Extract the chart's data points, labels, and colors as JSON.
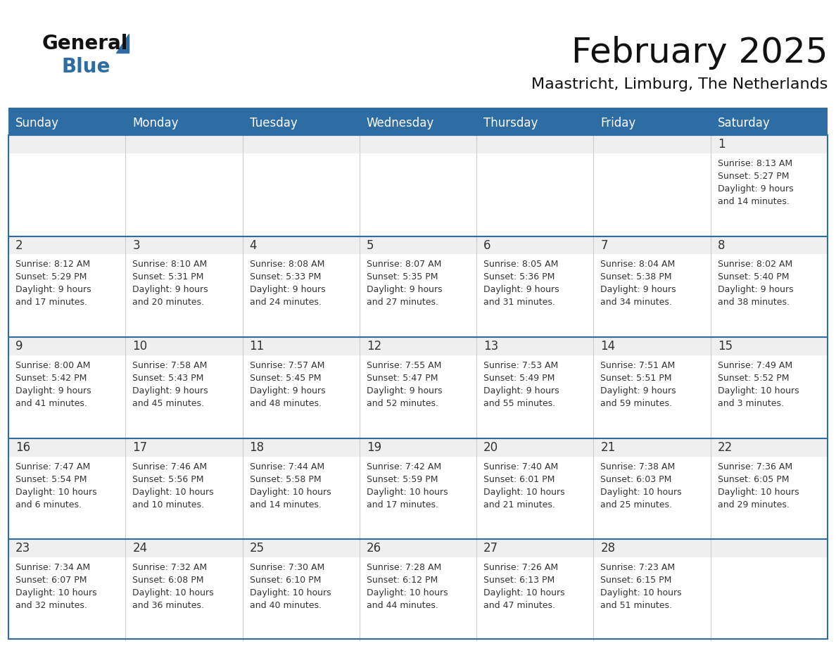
{
  "title": "February 2025",
  "subtitle": "Maastricht, Limburg, The Netherlands",
  "header_color": "#2E6DA4",
  "header_text_color": "#FFFFFF",
  "row_separator_color": "#2E6DA4",
  "col_separator_color": "#CCCCCC",
  "cell_bg_light": "#EFEFEF",
  "cell_bg_white": "#FFFFFF",
  "day_num_color": "#333333",
  "info_text_color": "#333333",
  "day_headers": [
    "Sunday",
    "Monday",
    "Tuesday",
    "Wednesday",
    "Thursday",
    "Friday",
    "Saturday"
  ],
  "logo_text_general": "General",
  "logo_text_blue": "Blue",
  "logo_color": "#2E6DA4",
  "title_fontsize": 36,
  "subtitle_fontsize": 16,
  "header_fontsize": 12,
  "day_num_fontsize": 12,
  "cell_fontsize": 9,
  "weeks": [
    [
      {
        "day": null,
        "info": null
      },
      {
        "day": null,
        "info": null
      },
      {
        "day": null,
        "info": null
      },
      {
        "day": null,
        "info": null
      },
      {
        "day": null,
        "info": null
      },
      {
        "day": null,
        "info": null
      },
      {
        "day": 1,
        "info": "Sunrise: 8:13 AM\nSunset: 5:27 PM\nDaylight: 9 hours\nand 14 minutes."
      }
    ],
    [
      {
        "day": 2,
        "info": "Sunrise: 8:12 AM\nSunset: 5:29 PM\nDaylight: 9 hours\nand 17 minutes."
      },
      {
        "day": 3,
        "info": "Sunrise: 8:10 AM\nSunset: 5:31 PM\nDaylight: 9 hours\nand 20 minutes."
      },
      {
        "day": 4,
        "info": "Sunrise: 8:08 AM\nSunset: 5:33 PM\nDaylight: 9 hours\nand 24 minutes."
      },
      {
        "day": 5,
        "info": "Sunrise: 8:07 AM\nSunset: 5:35 PM\nDaylight: 9 hours\nand 27 minutes."
      },
      {
        "day": 6,
        "info": "Sunrise: 8:05 AM\nSunset: 5:36 PM\nDaylight: 9 hours\nand 31 minutes."
      },
      {
        "day": 7,
        "info": "Sunrise: 8:04 AM\nSunset: 5:38 PM\nDaylight: 9 hours\nand 34 minutes."
      },
      {
        "day": 8,
        "info": "Sunrise: 8:02 AM\nSunset: 5:40 PM\nDaylight: 9 hours\nand 38 minutes."
      }
    ],
    [
      {
        "day": 9,
        "info": "Sunrise: 8:00 AM\nSunset: 5:42 PM\nDaylight: 9 hours\nand 41 minutes."
      },
      {
        "day": 10,
        "info": "Sunrise: 7:58 AM\nSunset: 5:43 PM\nDaylight: 9 hours\nand 45 minutes."
      },
      {
        "day": 11,
        "info": "Sunrise: 7:57 AM\nSunset: 5:45 PM\nDaylight: 9 hours\nand 48 minutes."
      },
      {
        "day": 12,
        "info": "Sunrise: 7:55 AM\nSunset: 5:47 PM\nDaylight: 9 hours\nand 52 minutes."
      },
      {
        "day": 13,
        "info": "Sunrise: 7:53 AM\nSunset: 5:49 PM\nDaylight: 9 hours\nand 55 minutes."
      },
      {
        "day": 14,
        "info": "Sunrise: 7:51 AM\nSunset: 5:51 PM\nDaylight: 9 hours\nand 59 minutes."
      },
      {
        "day": 15,
        "info": "Sunrise: 7:49 AM\nSunset: 5:52 PM\nDaylight: 10 hours\nand 3 minutes."
      }
    ],
    [
      {
        "day": 16,
        "info": "Sunrise: 7:47 AM\nSunset: 5:54 PM\nDaylight: 10 hours\nand 6 minutes."
      },
      {
        "day": 17,
        "info": "Sunrise: 7:46 AM\nSunset: 5:56 PM\nDaylight: 10 hours\nand 10 minutes."
      },
      {
        "day": 18,
        "info": "Sunrise: 7:44 AM\nSunset: 5:58 PM\nDaylight: 10 hours\nand 14 minutes."
      },
      {
        "day": 19,
        "info": "Sunrise: 7:42 AM\nSunset: 5:59 PM\nDaylight: 10 hours\nand 17 minutes."
      },
      {
        "day": 20,
        "info": "Sunrise: 7:40 AM\nSunset: 6:01 PM\nDaylight: 10 hours\nand 21 minutes."
      },
      {
        "day": 21,
        "info": "Sunrise: 7:38 AM\nSunset: 6:03 PM\nDaylight: 10 hours\nand 25 minutes."
      },
      {
        "day": 22,
        "info": "Sunrise: 7:36 AM\nSunset: 6:05 PM\nDaylight: 10 hours\nand 29 minutes."
      }
    ],
    [
      {
        "day": 23,
        "info": "Sunrise: 7:34 AM\nSunset: 6:07 PM\nDaylight: 10 hours\nand 32 minutes."
      },
      {
        "day": 24,
        "info": "Sunrise: 7:32 AM\nSunset: 6:08 PM\nDaylight: 10 hours\nand 36 minutes."
      },
      {
        "day": 25,
        "info": "Sunrise: 7:30 AM\nSunset: 6:10 PM\nDaylight: 10 hours\nand 40 minutes."
      },
      {
        "day": 26,
        "info": "Sunrise: 7:28 AM\nSunset: 6:12 PM\nDaylight: 10 hours\nand 44 minutes."
      },
      {
        "day": 27,
        "info": "Sunrise: 7:26 AM\nSunset: 6:13 PM\nDaylight: 10 hours\nand 47 minutes."
      },
      {
        "day": 28,
        "info": "Sunrise: 7:23 AM\nSunset: 6:15 PM\nDaylight: 10 hours\nand 51 minutes."
      },
      {
        "day": null,
        "info": null
      }
    ]
  ]
}
